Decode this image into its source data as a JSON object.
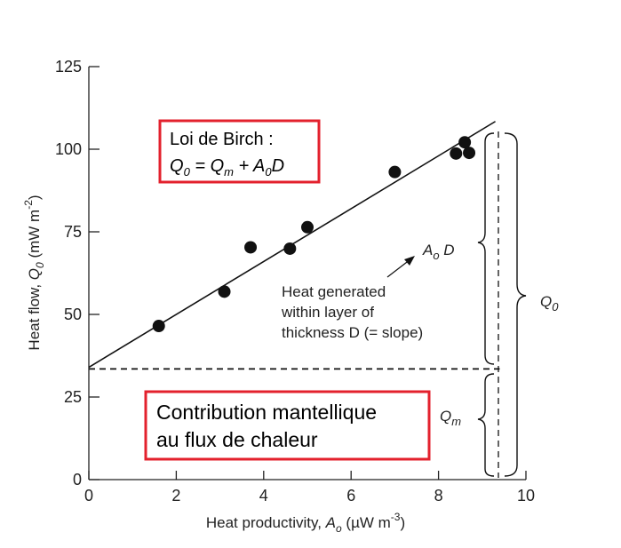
{
  "chart_data": {
    "type": "scatter",
    "xlabel": "Heat productivity, A_o (µW m^-3)",
    "ylabel": "Heat flow, Q_0 (mW m^-2)",
    "xlim": [
      0,
      10
    ],
    "ylim": [
      0,
      125
    ],
    "x_ticks": [
      "0",
      "2",
      "4",
      "6",
      "8",
      "10"
    ],
    "y_ticks": [
      "0",
      "25",
      "50",
      "75",
      "100",
      "125"
    ],
    "points": [
      {
        "x": 1.6,
        "y": 46.5
      },
      {
        "x": 3.1,
        "y": 56.9
      },
      {
        "x": 3.7,
        "y": 70.3
      },
      {
        "x": 4.6,
        "y": 69.9
      },
      {
        "x": 5.0,
        "y": 76.4
      },
      {
        "x": 7.0,
        "y": 93.1
      },
      {
        "x": 8.4,
        "y": 98.7
      },
      {
        "x": 8.6,
        "y": 102.1
      },
      {
        "x": 8.7,
        "y": 98.9
      }
    ],
    "fit_line": {
      "intercept": 34,
      "slope": 8.0,
      "x_range": [
        0,
        9.3
      ]
    },
    "mantle_level": 33.5,
    "grid": false
  },
  "labels": {
    "ylabel_prefix": "Heat flow, ",
    "ylabel_q": "Q",
    "ylabel_q_sub": "0",
    "ylabel_units": " (mW m",
    "ylabel_exp": "-2",
    "ylabel_close": ")",
    "xlabel_prefix": "Heat productivity, ",
    "xlabel_a": "A",
    "xlabel_a_sub": "o",
    "xlabel_units": " (µW m",
    "xlabel_exp": "-3",
    "xlabel_close": ")",
    "slope_label_a": "A",
    "slope_label_sub": "o",
    "slope_label_d": " D",
    "annotation_lines": [
      "Heat generated",
      "within layer of",
      "thickness D (= slope)"
    ],
    "q0_label": "Q",
    "q0_sub": "0",
    "qm_label": "Q",
    "qm_sub": "m"
  },
  "boxes": {
    "birch_title": "Loi de Birch :",
    "birch_eq": [
      "Q",
      "0",
      " = Q",
      "m",
      " + A",
      "0",
      "D"
    ],
    "mantle_line1": "Contribution mantellique",
    "mantle_line2": "au flux de chaleur",
    "border_color": "#e3212d"
  }
}
